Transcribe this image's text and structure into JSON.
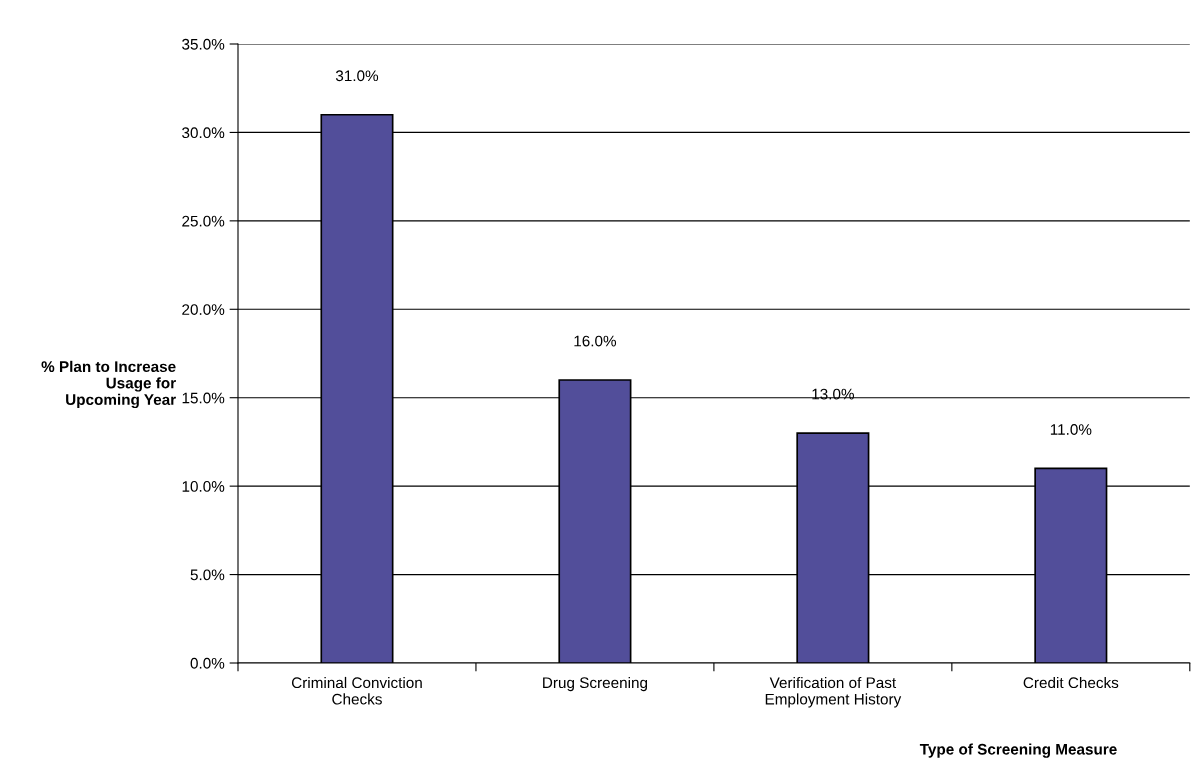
{
  "chart_data": {
    "type": "bar",
    "categories": [
      "Criminal Conviction\nChecks",
      "Drug Screening",
      "Verification of Past\nEmployment History",
      "Credit Checks"
    ],
    "values": [
      31,
      16,
      13,
      11
    ],
    "value_labels": [
      "31.0%",
      "16.0%",
      "13.0%",
      "11.0%"
    ],
    "color": "#524e9a",
    "xlabel": "Type of Screening Measure",
    "ylabel": "% Plan to Increase\nUsage for\nUpcoming Year",
    "ylim": [
      0,
      35
    ],
    "yticks": [
      {
        "value": 0,
        "label": "0.0%"
      },
      {
        "value": 5,
        "label": "5.0%"
      },
      {
        "value": 10,
        "label": "10.0%"
      },
      {
        "value": 15,
        "label": "15.0%"
      },
      {
        "value": 20,
        "label": "20.0%"
      },
      {
        "value": 25,
        "label": "25.0%"
      },
      {
        "value": 30,
        "label": "30.0%"
      },
      {
        "value": 35,
        "label": "35.0%"
      }
    ],
    "grid": "y",
    "legend": false
  }
}
